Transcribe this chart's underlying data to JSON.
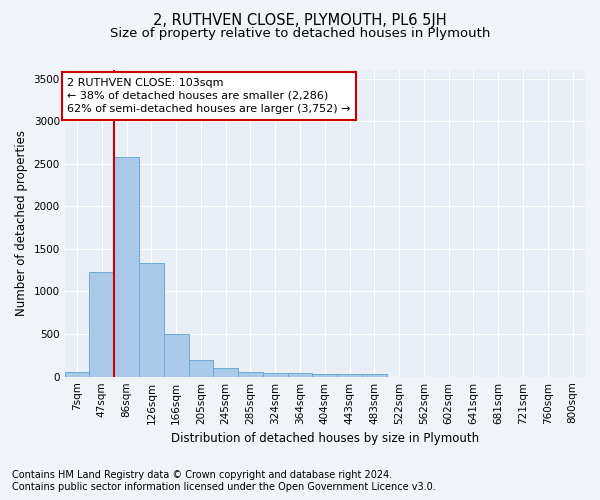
{
  "title": "2, RUTHVEN CLOSE, PLYMOUTH, PL6 5JH",
  "subtitle": "Size of property relative to detached houses in Plymouth",
  "xlabel": "Distribution of detached houses by size in Plymouth",
  "ylabel": "Number of detached properties",
  "categories": [
    "7sqm",
    "47sqm",
    "86sqm",
    "126sqm",
    "166sqm",
    "205sqm",
    "245sqm",
    "285sqm",
    "324sqm",
    "364sqm",
    "404sqm",
    "443sqm",
    "483sqm",
    "522sqm",
    "562sqm",
    "602sqm",
    "641sqm",
    "681sqm",
    "721sqm",
    "760sqm",
    "800sqm"
  ],
  "values": [
    50,
    1230,
    2580,
    1340,
    500,
    195,
    105,
    50,
    45,
    38,
    35,
    35,
    35,
    0,
    0,
    0,
    0,
    0,
    0,
    0,
    0
  ],
  "bar_color": "#aac8e8",
  "bar_edge_color": "#6aaad4",
  "vline_color": "#cc0000",
  "annotation_text": "2 RUTHVEN CLOSE: 103sqm\n← 38% of detached houses are smaller (2,286)\n62% of semi-detached houses are larger (3,752) →",
  "annotation_box_color": "#ffffff",
  "annotation_box_edge": "#cc0000",
  "ylim": [
    0,
    3600
  ],
  "yticks": [
    0,
    500,
    1000,
    1500,
    2000,
    2500,
    3000,
    3500
  ],
  "footer_line1": "Contains HM Land Registry data © Crown copyright and database right 2024.",
  "footer_line2": "Contains public sector information licensed under the Open Government Licence v3.0.",
  "bg_color": "#f0f4f8",
  "plot_bg_color": "#e8eef5",
  "title_fontsize": 10.5,
  "subtitle_fontsize": 9.5,
  "axis_label_fontsize": 8.5,
  "tick_fontsize": 7.5,
  "annotation_fontsize": 8,
  "footer_fontsize": 7
}
